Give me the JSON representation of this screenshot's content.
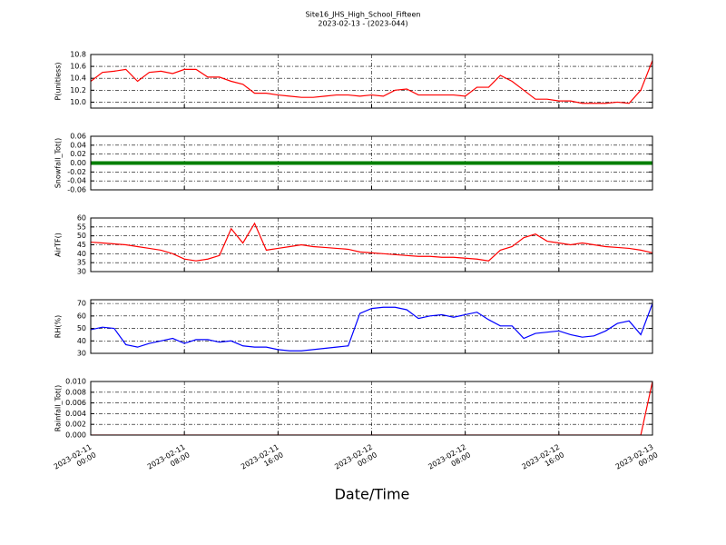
{
  "title": "Site16_JHS_High_School_Fifteen",
  "subtitle": "2023-02-13 - (2023-044)",
  "xlabel": "Date/Time",
  "x": [
    "2023-02-11 00:00",
    "2023-02-11 01:00",
    "2023-02-11 02:00",
    "2023-02-11 03:00",
    "2023-02-11 04:00",
    "2023-02-11 05:00",
    "2023-02-11 06:00",
    "2023-02-11 07:00",
    "2023-02-11 08:00",
    "2023-02-11 09:00",
    "2023-02-11 10:00",
    "2023-02-11 11:00",
    "2023-02-11 12:00",
    "2023-02-11 13:00",
    "2023-02-11 14:00",
    "2023-02-11 15:00",
    "2023-02-11 16:00",
    "2023-02-11 17:00",
    "2023-02-11 18:00",
    "2023-02-11 19:00",
    "2023-02-11 20:00",
    "2023-02-11 21:00",
    "2023-02-11 22:00",
    "2023-02-11 23:00",
    "2023-02-12 00:00",
    "2023-02-12 01:00",
    "2023-02-12 02:00",
    "2023-02-12 03:00",
    "2023-02-12 04:00",
    "2023-02-12 05:00",
    "2023-02-12 06:00",
    "2023-02-12 07:00",
    "2023-02-12 08:00",
    "2023-02-12 09:00",
    "2023-02-12 10:00",
    "2023-02-12 11:00",
    "2023-02-12 12:00",
    "2023-02-12 13:00",
    "2023-02-12 14:00",
    "2023-02-12 15:00",
    "2023-02-12 16:00",
    "2023-02-12 17:00",
    "2023-02-12 18:00",
    "2023-02-12 19:00",
    "2023-02-12 20:00",
    "2023-02-12 21:00",
    "2023-02-12 22:00",
    "2023-02-12 23:00",
    "2023-02-13 00:00"
  ],
  "xlim": [
    "2023-02-11 00:00",
    "2023-02-13 00:00"
  ],
  "xticks": [
    "2023-02-11 00:00",
    "2023-02-11 08:00",
    "2023-02-11 16:00",
    "2023-02-12 00:00",
    "2023-02-12 08:00",
    "2023-02-12 16:00",
    "2023-02-13 00:00"
  ],
  "chart_data": [
    {
      "type": "line",
      "ylabel": "P(unitless)",
      "color": "#ff0000",
      "grid": true,
      "ylim": [
        9.9,
        10.8
      ],
      "yticks": [
        {
          "value": 10.0,
          "label": "10.0"
        },
        10.2,
        10.4,
        10.6,
        10.8
      ],
      "values": [
        10.35,
        10.5,
        10.52,
        10.55,
        10.35,
        10.5,
        10.52,
        10.48,
        10.55,
        10.55,
        10.42,
        10.42,
        10.35,
        10.3,
        10.15,
        10.15,
        10.12,
        10.1,
        10.08,
        10.08,
        10.1,
        10.12,
        10.12,
        10.1,
        10.12,
        10.1,
        10.2,
        10.22,
        10.12,
        10.12,
        10.12,
        10.12,
        10.1,
        10.25,
        10.25,
        10.45,
        10.35,
        10.2,
        10.05,
        10.05,
        10.02,
        10.02,
        9.98,
        9.98,
        9.98,
        10.0,
        9.98,
        10.2,
        10.7
      ]
    },
    {
      "type": "line",
      "ylabel": "Snowfall_Tot()",
      "color": "#008000",
      "grid": true,
      "ylim": [
        -0.06,
        0.06
      ],
      "yticks": [
        -0.06,
        -0.04,
        -0.02,
        {
          "value": 0,
          "label": "0.00"
        },
        0.02,
        0.04,
        0.06
      ],
      "values": [
        0,
        0,
        0,
        0,
        0,
        0,
        0,
        0,
        0,
        0,
        0,
        0,
        0,
        0,
        0,
        0,
        0,
        0,
        0,
        0,
        0,
        0,
        0,
        0,
        0,
        0,
        0,
        0,
        0,
        0,
        0,
        0,
        0,
        0,
        0,
        0,
        0,
        0,
        0,
        0,
        0,
        0,
        0,
        0,
        0,
        0,
        0,
        0,
        0
      ]
    },
    {
      "type": "line",
      "ylabel": "AirTF()",
      "color": "#ff0000",
      "grid": true,
      "ylim": [
        30,
        60
      ],
      "yticks": [
        30,
        35,
        40,
        45,
        50,
        55,
        60
      ],
      "values": [
        46.5,
        46,
        45.5,
        45,
        44,
        43,
        42,
        40,
        37,
        36,
        37,
        39,
        54,
        46,
        57,
        42,
        43,
        44,
        45,
        44,
        43.5,
        43,
        42.5,
        41,
        40.5,
        40,
        39.5,
        39,
        38.5,
        38.5,
        38,
        38,
        37.5,
        37,
        36,
        42,
        44,
        49,
        51,
        47,
        46,
        45,
        46,
        45,
        44,
        43.5,
        43,
        42,
        40.5
      ]
    },
    {
      "type": "line",
      "ylabel": "RH(%)",
      "color": "#0000ff",
      "grid": true,
      "ylim": [
        30,
        73
      ],
      "yticks": [
        30,
        40,
        50,
        60,
        70
      ],
      "values": [
        49,
        51,
        50,
        37,
        35,
        38,
        40,
        42,
        38,
        41,
        41,
        39,
        40,
        36,
        35,
        35,
        33,
        32,
        32,
        33,
        34,
        35,
        36,
        62,
        66,
        67,
        67,
        65,
        58,
        60,
        61,
        59,
        61,
        63,
        57,
        52,
        52,
        42,
        46,
        47,
        48,
        45,
        43,
        44,
        48,
        54,
        56,
        45,
        70
      ]
    },
    {
      "type": "line",
      "ylabel": "Rainfall_Tot()",
      "color": "#ff0000",
      "grid": true,
      "ylim": [
        0,
        0.01
      ],
      "yticks": [
        {
          "value": 0,
          "label": "0.000"
        },
        0.002,
        0.004,
        0.006,
        0.008,
        {
          "value": 0.01,
          "label": "0.010"
        }
      ],
      "values": [
        0,
        0,
        0,
        0,
        0,
        0,
        0,
        0,
        0,
        0,
        0,
        0,
        0,
        0,
        0,
        0,
        0,
        0,
        0,
        0,
        0,
        0,
        0,
        0,
        0,
        0,
        0,
        0,
        0,
        0,
        0,
        0,
        0,
        0,
        0,
        0,
        0,
        0,
        0,
        0,
        0,
        0,
        0,
        0,
        0,
        0,
        0,
        0,
        0.01
      ]
    }
  ]
}
